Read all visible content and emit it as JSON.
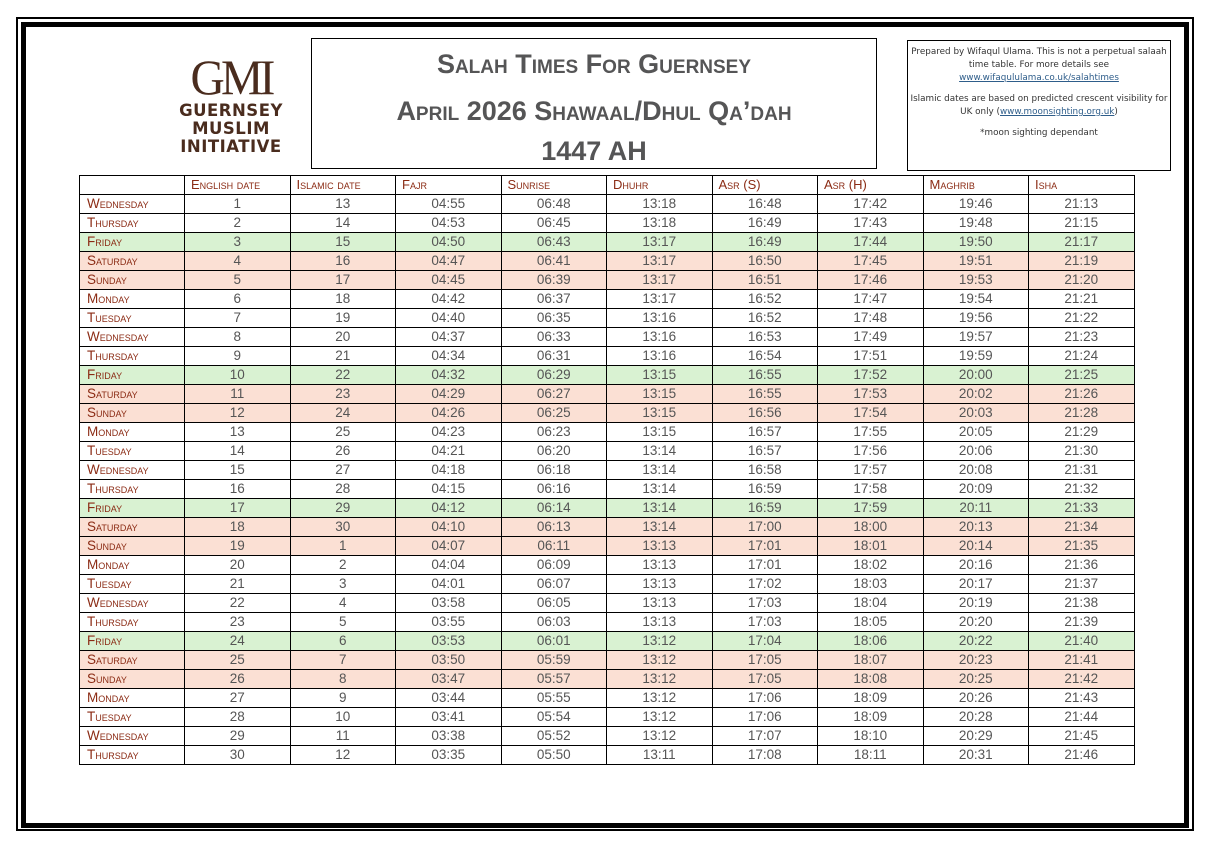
{
  "logo": {
    "mark": "GMI",
    "lines": [
      "GUERNSEY",
      "MUSLIM",
      "INITIATIVE"
    ],
    "color": "#4a2c1e"
  },
  "title": {
    "line1": "Salah Times For Guernsey",
    "line2": "April 2026 Shawaal/Dhul Qa’dah",
    "line3": "1447 AH"
  },
  "info": {
    "para1_text": "Prepared by Wifaqul Ulama.  This is not a perpetual salaah time table. For more details see",
    "para1_link": "www.wifaqululama.co.uk/salahtimes",
    "para2_text": "Islamic dates are based on predicted crescent visibility for UK only (",
    "para2_link": "www.moonsighting.org.uk",
    "para2_close": ")",
    "note": "*moon sighting dependant"
  },
  "colors": {
    "header_text": "#8b2b14",
    "friday_row": "#d9f2d2",
    "weekend_row": "#fbe0d4",
    "cell_text": "#555555"
  },
  "table": {
    "headers": [
      "",
      "English date",
      "Islamic date",
      "Fajr",
      "Sunrise",
      "Dhuhr",
      "Asr (S)",
      "Asr (H)",
      "Maghrib",
      "Isha"
    ],
    "rows": [
      {
        "day": "Wednesday",
        "type": "normal",
        "eng": "1",
        "isl": "13",
        "fajr": "04:55",
        "sunrise": "06:48",
        "dhuhr": "13:18",
        "asr_s": "16:48",
        "asr_h": "17:42",
        "maghrib": "19:46",
        "isha": "21:13"
      },
      {
        "day": "Thursday",
        "type": "normal",
        "eng": "2",
        "isl": "14",
        "fajr": "04:53",
        "sunrise": "06:45",
        "dhuhr": "13:18",
        "asr_s": "16:49",
        "asr_h": "17:43",
        "maghrib": "19:48",
        "isha": "21:15"
      },
      {
        "day": "Friday",
        "type": "friday",
        "eng": "3",
        "isl": "15",
        "fajr": "04:50",
        "sunrise": "06:43",
        "dhuhr": "13:17",
        "asr_s": "16:49",
        "asr_h": "17:44",
        "maghrib": "19:50",
        "isha": "21:17"
      },
      {
        "day": "Saturday",
        "type": "weekend",
        "eng": "4",
        "isl": "16",
        "fajr": "04:47",
        "sunrise": "06:41",
        "dhuhr": "13:17",
        "asr_s": "16:50",
        "asr_h": "17:45",
        "maghrib": "19:51",
        "isha": "21:19"
      },
      {
        "day": "Sunday",
        "type": "weekend",
        "eng": "5",
        "isl": "17",
        "fajr": "04:45",
        "sunrise": "06:39",
        "dhuhr": "13:17",
        "asr_s": "16:51",
        "asr_h": "17:46",
        "maghrib": "19:53",
        "isha": "21:20"
      },
      {
        "day": "Monday",
        "type": "normal",
        "eng": "6",
        "isl": "18",
        "fajr": "04:42",
        "sunrise": "06:37",
        "dhuhr": "13:17",
        "asr_s": "16:52",
        "asr_h": "17:47",
        "maghrib": "19:54",
        "isha": "21:21"
      },
      {
        "day": "Tuesday",
        "type": "normal",
        "eng": "7",
        "isl": "19",
        "fajr": "04:40",
        "sunrise": "06:35",
        "dhuhr": "13:16",
        "asr_s": "16:52",
        "asr_h": "17:48",
        "maghrib": "19:56",
        "isha": "21:22"
      },
      {
        "day": "Wednesday",
        "type": "normal",
        "eng": "8",
        "isl": "20",
        "fajr": "04:37",
        "sunrise": "06:33",
        "dhuhr": "13:16",
        "asr_s": "16:53",
        "asr_h": "17:49",
        "maghrib": "19:57",
        "isha": "21:23"
      },
      {
        "day": "Thursday",
        "type": "normal",
        "eng": "9",
        "isl": "21",
        "fajr": "04:34",
        "sunrise": "06:31",
        "dhuhr": "13:16",
        "asr_s": "16:54",
        "asr_h": "17:51",
        "maghrib": "19:59",
        "isha": "21:24"
      },
      {
        "day": "Friday",
        "type": "friday",
        "eng": "10",
        "isl": "22",
        "fajr": "04:32",
        "sunrise": "06:29",
        "dhuhr": "13:15",
        "asr_s": "16:55",
        "asr_h": "17:52",
        "maghrib": "20:00",
        "isha": "21:25"
      },
      {
        "day": "Saturday",
        "type": "weekend",
        "eng": "11",
        "isl": "23",
        "fajr": "04:29",
        "sunrise": "06:27",
        "dhuhr": "13:15",
        "asr_s": "16:55",
        "asr_h": "17:53",
        "maghrib": "20:02",
        "isha": "21:26"
      },
      {
        "day": "Sunday",
        "type": "weekend",
        "eng": "12",
        "isl": "24",
        "fajr": "04:26",
        "sunrise": "06:25",
        "dhuhr": "13:15",
        "asr_s": "16:56",
        "asr_h": "17:54",
        "maghrib": "20:03",
        "isha": "21:28"
      },
      {
        "day": "Monday",
        "type": "normal",
        "eng": "13",
        "isl": "25",
        "fajr": "04:23",
        "sunrise": "06:23",
        "dhuhr": "13:15",
        "asr_s": "16:57",
        "asr_h": "17:55",
        "maghrib": "20:05",
        "isha": "21:29"
      },
      {
        "day": "Tuesday",
        "type": "normal",
        "eng": "14",
        "isl": "26",
        "fajr": "04:21",
        "sunrise": "06:20",
        "dhuhr": "13:14",
        "asr_s": "16:57",
        "asr_h": "17:56",
        "maghrib": "20:06",
        "isha": "21:30"
      },
      {
        "day": "Wednesday",
        "type": "normal",
        "eng": "15",
        "isl": "27",
        "fajr": "04:18",
        "sunrise": "06:18",
        "dhuhr": "13:14",
        "asr_s": "16:58",
        "asr_h": "17:57",
        "maghrib": "20:08",
        "isha": "21:31"
      },
      {
        "day": "Thursday",
        "type": "normal",
        "eng": "16",
        "isl": "28",
        "fajr": "04:15",
        "sunrise": "06:16",
        "dhuhr": "13:14",
        "asr_s": "16:59",
        "asr_h": "17:58",
        "maghrib": "20:09",
        "isha": "21:32"
      },
      {
        "day": "Friday",
        "type": "friday",
        "eng": "17",
        "isl": "29",
        "fajr": "04:12",
        "sunrise": "06:14",
        "dhuhr": "13:14",
        "asr_s": "16:59",
        "asr_h": "17:59",
        "maghrib": "20:11",
        "isha": "21:33"
      },
      {
        "day": "Saturday",
        "type": "weekend",
        "eng": "18",
        "isl": "30",
        "fajr": "04:10",
        "sunrise": "06:13",
        "dhuhr": "13:14",
        "asr_s": "17:00",
        "asr_h": "18:00",
        "maghrib": "20:13",
        "isha": "21:34"
      },
      {
        "day": "Sunday",
        "type": "weekend",
        "eng": "19",
        "isl": "1",
        "fajr": "04:07",
        "sunrise": "06:11",
        "dhuhr": "13:13",
        "asr_s": "17:01",
        "asr_h": "18:01",
        "maghrib": "20:14",
        "isha": "21:35"
      },
      {
        "day": "Monday",
        "type": "normal",
        "eng": "20",
        "isl": "2",
        "fajr": "04:04",
        "sunrise": "06:09",
        "dhuhr": "13:13",
        "asr_s": "17:01",
        "asr_h": "18:02",
        "maghrib": "20:16",
        "isha": "21:36"
      },
      {
        "day": "Tuesday",
        "type": "normal",
        "eng": "21",
        "isl": "3",
        "fajr": "04:01",
        "sunrise": "06:07",
        "dhuhr": "13:13",
        "asr_s": "17:02",
        "asr_h": "18:03",
        "maghrib": "20:17",
        "isha": "21:37"
      },
      {
        "day": "Wednesday",
        "type": "normal",
        "eng": "22",
        "isl": "4",
        "fajr": "03:58",
        "sunrise": "06:05",
        "dhuhr": "13:13",
        "asr_s": "17:03",
        "asr_h": "18:04",
        "maghrib": "20:19",
        "isha": "21:38"
      },
      {
        "day": "Thursday",
        "type": "normal",
        "eng": "23",
        "isl": "5",
        "fajr": "03:55",
        "sunrise": "06:03",
        "dhuhr": "13:13",
        "asr_s": "17:03",
        "asr_h": "18:05",
        "maghrib": "20:20",
        "isha": "21:39"
      },
      {
        "day": "Friday",
        "type": "friday",
        "eng": "24",
        "isl": "6",
        "fajr": "03:53",
        "sunrise": "06:01",
        "dhuhr": "13:12",
        "asr_s": "17:04",
        "asr_h": "18:06",
        "maghrib": "20:22",
        "isha": "21:40"
      },
      {
        "day": "Saturday",
        "type": "weekend",
        "eng": "25",
        "isl": "7",
        "fajr": "03:50",
        "sunrise": "05:59",
        "dhuhr": "13:12",
        "asr_s": "17:05",
        "asr_h": "18:07",
        "maghrib": "20:23",
        "isha": "21:41"
      },
      {
        "day": "Sunday",
        "type": "weekend",
        "eng": "26",
        "isl": "8",
        "fajr": "03:47",
        "sunrise": "05:57",
        "dhuhr": "13:12",
        "asr_s": "17:05",
        "asr_h": "18:08",
        "maghrib": "20:25",
        "isha": "21:42"
      },
      {
        "day": "Monday",
        "type": "normal",
        "eng": "27",
        "isl": "9",
        "fajr": "03:44",
        "sunrise": "05:55",
        "dhuhr": "13:12",
        "asr_s": "17:06",
        "asr_h": "18:09",
        "maghrib": "20:26",
        "isha": "21:43"
      },
      {
        "day": "Tuesday",
        "type": "normal",
        "eng": "28",
        "isl": "10",
        "fajr": "03:41",
        "sunrise": "05:54",
        "dhuhr": "13:12",
        "asr_s": "17:06",
        "asr_h": "18:09",
        "maghrib": "20:28",
        "isha": "21:44"
      },
      {
        "day": "Wednesday",
        "type": "normal",
        "eng": "29",
        "isl": "11",
        "fajr": "03:38",
        "sunrise": "05:52",
        "dhuhr": "13:12",
        "asr_s": "17:07",
        "asr_h": "18:10",
        "maghrib": "20:29",
        "isha": "21:45"
      },
      {
        "day": "Thursday",
        "type": "normal",
        "eng": "30",
        "isl": "12",
        "fajr": "03:35",
        "sunrise": "05:50",
        "dhuhr": "13:11",
        "asr_s": "17:08",
        "asr_h": "18:11",
        "maghrib": "20:31",
        "isha": "21:46"
      }
    ]
  }
}
